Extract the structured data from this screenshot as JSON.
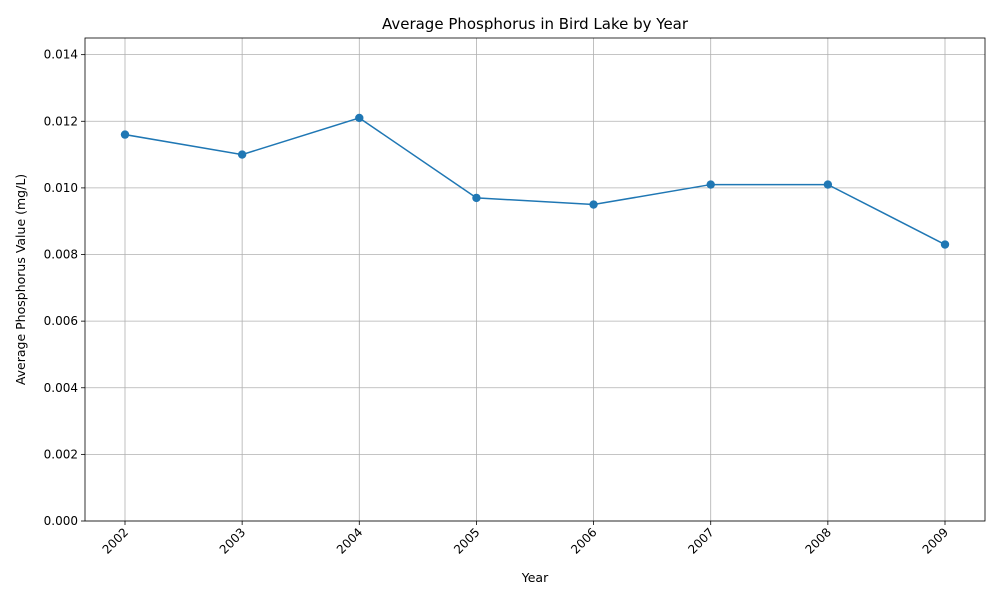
{
  "chart_data": {
    "type": "line",
    "title": "Average Phosphorus in Bird Lake by Year",
    "xlabel": "Year",
    "ylabel": "Average Phosphorus Value (mg/L)",
    "x": [
      "2002",
      "2003",
      "2004",
      "2005",
      "2006",
      "2007",
      "2008",
      "2009"
    ],
    "series": [
      {
        "values": [
          0.0116,
          0.011,
          0.0121,
          0.0097,
          0.0095,
          0.0101,
          0.0101,
          0.0083
        ]
      }
    ],
    "ylim": [
      0,
      0.0145
    ],
    "yticks": [
      "0.000",
      "0.002",
      "0.004",
      "0.006",
      "0.008",
      "0.010",
      "0.012",
      "0.014"
    ],
    "ytick_values": [
      0,
      0.002,
      0.004,
      0.006,
      0.008,
      0.01,
      0.012,
      0.014
    ],
    "grid": true,
    "line_color": "#1f77b4",
    "marker": "circle"
  }
}
